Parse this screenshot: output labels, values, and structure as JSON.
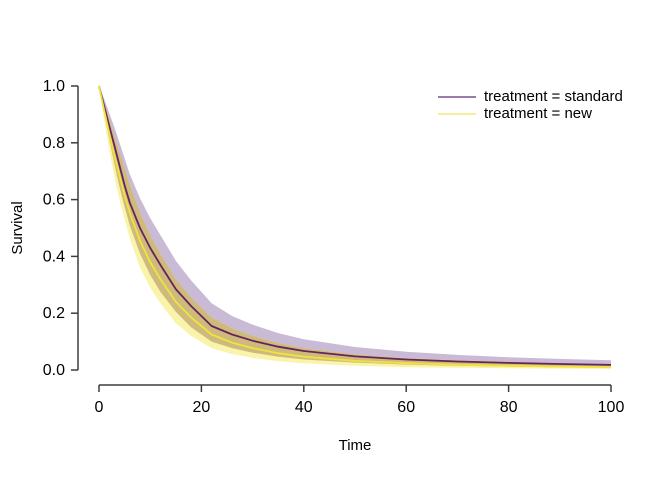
{
  "figure": {
    "background_color": "#ffffff",
    "axis_color": "#3d3d3d",
    "text_color": "#000000"
  },
  "chart_data": {
    "type": "line",
    "title": "",
    "xlabel": "Time",
    "ylabel": "Survival",
    "xlim": [
      0,
      100
    ],
    "ylim": [
      0.0,
      1.0
    ],
    "grid": false,
    "legend_position": "top-right",
    "x_ticks": {
      "values": [
        0,
        20,
        40,
        60,
        80,
        100
      ],
      "labels": [
        "0",
        "20",
        "40",
        "60",
        "80",
        "100"
      ]
    },
    "y_ticks": {
      "values": [
        0.0,
        0.2,
        0.4,
        0.6,
        0.8,
        1.0
      ],
      "labels": [
        "0.0",
        "0.2",
        "0.4",
        "0.6",
        "0.8",
        "1.0"
      ]
    },
    "band_overlap_color": "#cfba7d",
    "x": [
      0,
      1,
      2,
      3,
      4,
      5,
      6,
      8,
      10,
      12,
      15,
      18,
      22,
      26,
      30,
      35,
      40,
      50,
      60,
      70,
      80,
      90,
      100
    ],
    "series": [
      {
        "name": "treatment = standard",
        "line_color": "#68225e",
        "band_color": "#c9bad6",
        "legend_line_color": "#9a7ba8",
        "values": [
          1.0,
          0.93,
          0.86,
          0.79,
          0.72,
          0.65,
          0.59,
          0.5,
          0.43,
          0.37,
          0.285,
          0.225,
          0.155,
          0.125,
          0.103,
          0.082,
          0.067,
          0.048,
          0.037,
          0.03,
          0.025,
          0.021,
          0.018
        ],
        "upper": [
          1.0,
          0.955,
          0.905,
          0.855,
          0.8,
          0.745,
          0.69,
          0.605,
          0.535,
          0.475,
          0.385,
          0.315,
          0.235,
          0.19,
          0.16,
          0.13,
          0.108,
          0.081,
          0.064,
          0.053,
          0.045,
          0.039,
          0.034
        ],
        "lower": [
          1.0,
          0.905,
          0.815,
          0.725,
          0.645,
          0.575,
          0.51,
          0.41,
          0.335,
          0.275,
          0.205,
          0.15,
          0.1,
          0.077,
          0.061,
          0.047,
          0.037,
          0.026,
          0.019,
          0.015,
          0.012,
          0.01,
          0.009
        ]
      },
      {
        "name": "treatment = new",
        "line_color": "#efe33d",
        "band_color": "#faf4aa",
        "legend_line_color": "#f5ef9b",
        "values": [
          1.0,
          0.915,
          0.835,
          0.755,
          0.685,
          0.615,
          0.555,
          0.455,
          0.38,
          0.32,
          0.24,
          0.185,
          0.125,
          0.096,
          0.077,
          0.059,
          0.047,
          0.032,
          0.024,
          0.019,
          0.015,
          0.012,
          0.01
        ],
        "upper": [
          1.0,
          0.94,
          0.885,
          0.825,
          0.765,
          0.71,
          0.655,
          0.555,
          0.475,
          0.41,
          0.32,
          0.255,
          0.185,
          0.147,
          0.12,
          0.095,
          0.077,
          0.055,
          0.042,
          0.034,
          0.028,
          0.023,
          0.02
        ],
        "lower": [
          1.0,
          0.885,
          0.775,
          0.68,
          0.6,
          0.53,
          0.465,
          0.36,
          0.29,
          0.235,
          0.165,
          0.12,
          0.077,
          0.056,
          0.043,
          0.031,
          0.024,
          0.015,
          0.01,
          0.008,
          0.006,
          0.005,
          0.004
        ]
      }
    ]
  }
}
